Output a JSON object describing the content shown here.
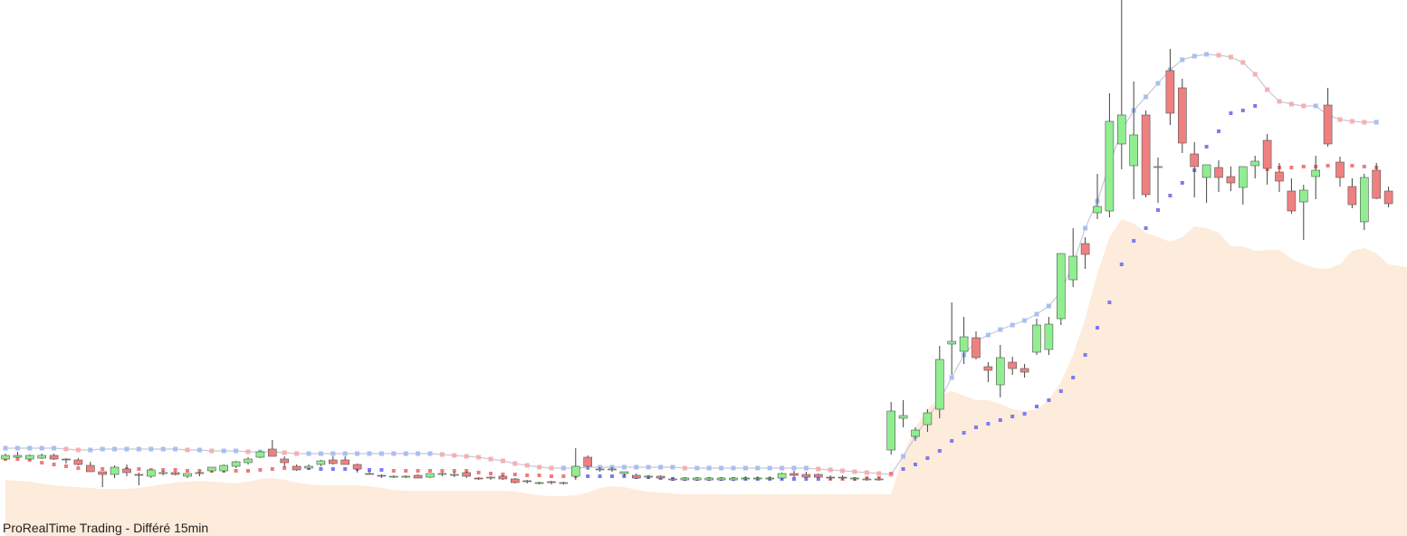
{
  "footer": {
    "text": "ProRealTime Trading - Différé 15min"
  },
  "colors": {
    "up_fill": "#90ee90",
    "down_fill": "#f08080",
    "wick": "#444444",
    "area_fill": "#fdebdc",
    "ma_up": "#a9bff0",
    "ma_down": "#f5b0b0",
    "sar_up": "#7b7bf0",
    "sar_down": "#f07b7b"
  },
  "chart_data": {
    "type": "candlestick",
    "title": "",
    "xlabel": "",
    "ylabel": "",
    "grid": false,
    "legend": "none",
    "ylim": [
      0,
      592
    ],
    "volume_ylim": [
      0,
      592
    ],
    "candles": [
      {
        "o": 85,
        "h": 91,
        "l": 84,
        "c": 89
      },
      {
        "o": 87,
        "h": 93,
        "l": 86,
        "c": 89
      },
      {
        "o": 85,
        "h": 90,
        "l": 84,
        "c": 89
      },
      {
        "o": 86,
        "h": 91,
        "l": 85,
        "c": 89
      },
      {
        "o": 89,
        "h": 91,
        "l": 84,
        "c": 85
      },
      {
        "o": 85,
        "h": 86,
        "l": 80,
        "c": 84
      },
      {
        "o": 84,
        "h": 86,
        "l": 78,
        "c": 79
      },
      {
        "o": 78,
        "h": 82,
        "l": 76,
        "c": 71
      },
      {
        "o": 71,
        "h": 70,
        "l": 54,
        "c": 68
      },
      {
        "o": 68,
        "h": 78,
        "l": 64,
        "c": 76
      },
      {
        "o": 74,
        "h": 79,
        "l": 66,
        "c": 70
      },
      {
        "o": 68,
        "h": 70,
        "l": 56,
        "c": 67
      },
      {
        "o": 66,
        "h": 73,
        "l": 64,
        "c": 73
      },
      {
        "o": 69,
        "h": 72,
        "l": 67,
        "c": 70
      },
      {
        "o": 70,
        "h": 71,
        "l": 67,
        "c": 68
      },
      {
        "o": 66,
        "h": 69,
        "l": 64,
        "c": 69
      },
      {
        "o": 70,
        "h": 71,
        "l": 66,
        "c": 70
      },
      {
        "o": 72,
        "h": 76,
        "l": 70,
        "c": 76
      },
      {
        "o": 72,
        "h": 79,
        "l": 70,
        "c": 78
      },
      {
        "o": 77,
        "h": 83,
        "l": 75,
        "c": 82
      },
      {
        "o": 81,
        "h": 87,
        "l": 79,
        "c": 85
      },
      {
        "o": 87,
        "h": 94,
        "l": 86,
        "c": 93
      },
      {
        "o": 96,
        "h": 106,
        "l": 90,
        "c": 88
      },
      {
        "o": 85,
        "h": 88,
        "l": 76,
        "c": 81
      },
      {
        "o": 77,
        "h": 79,
        "l": 72,
        "c": 73
      },
      {
        "o": 75,
        "h": 79,
        "l": 73,
        "c": 77
      },
      {
        "o": 79,
        "h": 84,
        "l": 77,
        "c": 83
      },
      {
        "o": 84,
        "h": 88,
        "l": 79,
        "c": 80
      },
      {
        "o": 84,
        "h": 88,
        "l": 79,
        "c": 79
      },
      {
        "o": 79,
        "h": 80,
        "l": 70,
        "c": 74
      },
      {
        "o": 69,
        "h": 72,
        "l": 68,
        "c": 68
      },
      {
        "o": 67,
        "h": 68,
        "l": 64,
        "c": 66
      },
      {
        "o": 66,
        "h": 67,
        "l": 64,
        "c": 66
      },
      {
        "o": 66,
        "h": 67,
        "l": 64,
        "c": 66
      },
      {
        "o": 67,
        "h": 68,
        "l": 64,
        "c": 64
      },
      {
        "o": 65,
        "h": 69,
        "l": 64,
        "c": 69
      },
      {
        "o": 68,
        "h": 70,
        "l": 66,
        "c": 69
      },
      {
        "o": 68,
        "h": 71,
        "l": 65,
        "c": 68
      },
      {
        "o": 70,
        "h": 71,
        "l": 64,
        "c": 66
      },
      {
        "o": 64,
        "h": 65,
        "l": 62,
        "c": 63
      },
      {
        "o": 64,
        "h": 66,
        "l": 62,
        "c": 65
      },
      {
        "o": 66,
        "h": 67,
        "l": 62,
        "c": 63
      },
      {
        "o": 63,
        "h": 64,
        "l": 58,
        "c": 59
      },
      {
        "o": 61,
        "h": 62,
        "l": 58,
        "c": 60
      },
      {
        "o": 59,
        "h": 60,
        "l": 57,
        "c": 59
      },
      {
        "o": 60,
        "h": 61,
        "l": 57,
        "c": 59
      },
      {
        "o": 59,
        "h": 60,
        "l": 57,
        "c": 59
      },
      {
        "o": 66,
        "h": 97,
        "l": 62,
        "c": 77
      },
      {
        "o": 87,
        "h": 89,
        "l": 73,
        "c": 77
      },
      {
        "o": 74,
        "h": 76,
        "l": 71,
        "c": 74
      },
      {
        "o": 74,
        "h": 76,
        "l": 71,
        "c": 74
      },
      {
        "o": 69,
        "h": 71,
        "l": 66,
        "c": 71
      },
      {
        "o": 67,
        "h": 69,
        "l": 63,
        "c": 64
      },
      {
        "o": 65,
        "h": 67,
        "l": 63,
        "c": 66
      },
      {
        "o": 66,
        "h": 67,
        "l": 63,
        "c": 64
      },
      {
        "o": 63,
        "h": 65,
        "l": 61,
        "c": 63
      },
      {
        "o": 62,
        "h": 64,
        "l": 61,
        "c": 64
      },
      {
        "o": 62,
        "h": 64,
        "l": 61,
        "c": 64
      },
      {
        "o": 62,
        "h": 65,
        "l": 61,
        "c": 64
      },
      {
        "o": 62,
        "h": 64,
        "l": 61,
        "c": 64
      },
      {
        "o": 62,
        "h": 65,
        "l": 61,
        "c": 64
      },
      {
        "o": 64,
        "h": 66,
        "l": 62,
        "c": 64
      },
      {
        "o": 63,
        "h": 66,
        "l": 62,
        "c": 64
      },
      {
        "o": 64,
        "h": 66,
        "l": 62,
        "c": 64
      },
      {
        "o": 64,
        "h": 70,
        "l": 62,
        "c": 69
      },
      {
        "o": 69,
        "h": 72,
        "l": 65,
        "c": 67
      },
      {
        "o": 68,
        "h": 71,
        "l": 64,
        "c": 65
      },
      {
        "o": 68,
        "h": 69,
        "l": 64,
        "c": 65
      },
      {
        "o": 65,
        "h": 67,
        "l": 62,
        "c": 64
      },
      {
        "o": 65,
        "h": 67,
        "l": 62,
        "c": 64
      },
      {
        "o": 64,
        "h": 65,
        "l": 61,
        "c": 64
      },
      {
        "o": 63,
        "h": 65,
        "l": 61,
        "c": 63
      },
      {
        "o": 63,
        "h": 65,
        "l": 61,
        "c": 63
      },
      {
        "o": 95,
        "h": 148,
        "l": 90,
        "c": 138
      },
      {
        "o": 130,
        "h": 150,
        "l": 120,
        "c": 133
      },
      {
        "o": 110,
        "h": 120,
        "l": 105,
        "c": 117
      },
      {
        "o": 123,
        "h": 140,
        "l": 115,
        "c": 136
      },
      {
        "o": 140,
        "h": 210,
        "l": 130,
        "c": 195
      },
      {
        "o": 212,
        "h": 258,
        "l": 178,
        "c": 215
      },
      {
        "o": 204,
        "h": 242,
        "l": 190,
        "c": 220
      },
      {
        "o": 219,
        "h": 226,
        "l": 195,
        "c": 197
      },
      {
        "o": 187,
        "h": 192,
        "l": 170,
        "c": 183
      },
      {
        "o": 167,
        "h": 211,
        "l": 153,
        "c": 197
      },
      {
        "o": 192,
        "h": 198,
        "l": 178,
        "c": 185
      },
      {
        "o": 185,
        "h": 190,
        "l": 175,
        "c": 181
      },
      {
        "o": 203,
        "h": 240,
        "l": 200,
        "c": 233
      },
      {
        "o": 206,
        "h": 242,
        "l": 200,
        "c": 234
      },
      {
        "o": 240,
        "h": 310,
        "l": 233,
        "c": 312
      },
      {
        "o": 283,
        "h": 340,
        "l": 275,
        "c": 309
      },
      {
        "o": 323,
        "h": 330,
        "l": 295,
        "c": 311
      },
      {
        "o": 357,
        "h": 400,
        "l": 350,
        "c": 364
      },
      {
        "o": 359,
        "h": 489,
        "l": 352,
        "c": 458
      },
      {
        "o": 433,
        "h": 592,
        "l": 405,
        "c": 465
      },
      {
        "o": 409,
        "h": 502,
        "l": 372,
        "c": 443
      },
      {
        "o": 465,
        "h": 470,
        "l": 374,
        "c": 377
      },
      {
        "o": 408,
        "h": 418,
        "l": 368,
        "c": 408
      },
      {
        "o": 514,
        "h": 538,
        "l": 454,
        "c": 467
      },
      {
        "o": 495,
        "h": 505,
        "l": 423,
        "c": 434
      },
      {
        "o": 422,
        "h": 435,
        "l": 374,
        "c": 408
      },
      {
        "o": 396,
        "h": 405,
        "l": 368,
        "c": 410
      },
      {
        "o": 407,
        "h": 415,
        "l": 380,
        "c": 396
      },
      {
        "o": 397,
        "h": 408,
        "l": 381,
        "c": 390
      },
      {
        "o": 385,
        "h": 407,
        "l": 366,
        "c": 408
      },
      {
        "o": 409,
        "h": 420,
        "l": 395,
        "c": 414
      },
      {
        "o": 437,
        "h": 444,
        "l": 388,
        "c": 406
      },
      {
        "o": 402,
        "h": 412,
        "l": 380,
        "c": 392
      },
      {
        "o": 381,
        "h": 395,
        "l": 356,
        "c": 359
      },
      {
        "o": 369,
        "h": 388,
        "l": 327,
        "c": 382
      },
      {
        "o": 397,
        "h": 420,
        "l": 372,
        "c": 404
      },
      {
        "o": 476,
        "h": 495,
        "l": 430,
        "c": 433
      },
      {
        "o": 413,
        "h": 419,
        "l": 386,
        "c": 396
      },
      {
        "o": 386,
        "h": 395,
        "l": 362,
        "c": 366
      },
      {
        "o": 347,
        "h": 400,
        "l": 338,
        "c": 396
      },
      {
        "o": 404,
        "h": 412,
        "l": 372,
        "c": 373
      },
      {
        "o": 381,
        "h": 386,
        "l": 363,
        "c": 367
      }
    ],
    "volume_area": [
      62,
      61,
      60,
      58,
      56,
      55,
      54,
      53,
      52,
      52,
      52,
      53,
      55,
      57,
      59,
      60,
      61,
      60,
      59,
      58,
      60,
      63,
      64,
      62,
      59,
      57,
      56,
      56,
      56,
      56,
      55,
      53,
      51,
      50,
      50,
      50,
      50,
      50,
      50,
      50,
      50,
      50,
      49,
      47,
      45,
      44,
      44,
      45,
      48,
      53,
      55,
      54,
      51,
      49,
      48,
      47,
      46,
      46,
      46,
      46,
      46,
      46,
      46,
      46,
      46,
      46,
      46,
      46,
      46,
      46,
      46,
      46,
      46,
      46,
      90,
      120,
      140,
      155,
      160,
      155,
      150,
      150,
      146,
      140,
      138,
      140,
      150,
      170,
      200,
      240,
      290,
      330,
      350,
      345,
      335,
      330,
      325,
      330,
      342,
      340,
      335,
      320,
      320,
      315,
      316,
      316,
      306,
      300,
      296,
      295,
      300,
      315,
      318,
      312,
      300,
      298,
      296,
      296
    ],
    "ma": [
      97,
      97,
      97,
      97,
      97,
      96,
      95,
      95,
      96,
      96,
      96,
      96,
      96,
      96,
      96,
      95,
      95,
      94,
      94,
      94,
      93,
      93,
      93,
      92,
      91,
      91,
      91,
      91,
      91,
      91,
      91,
      91,
      91,
      91,
      91,
      91,
      90,
      89,
      88,
      87,
      85,
      83,
      80,
      78,
      76,
      75,
      75,
      75,
      76,
      76,
      76,
      76,
      76,
      76,
      76,
      76,
      75,
      75,
      75,
      75,
      75,
      75,
      75,
      75,
      75,
      75,
      75,
      74,
      73,
      72,
      71,
      70,
      69,
      68,
      88,
      110,
      130,
      150,
      175,
      200,
      215,
      222,
      228,
      233,
      238,
      245,
      254,
      270,
      300,
      340,
      370,
      410,
      448,
      470,
      485,
      500,
      515,
      526,
      530,
      532,
      531,
      529,
      523,
      510,
      493,
      480,
      477,
      475,
      475,
      465,
      460,
      458,
      457,
      457
    ],
    "sar": [
      85,
      85,
      84,
      81,
      79,
      77,
      75,
      75,
      74,
      74,
      74,
      74,
      73,
      73,
      73,
      72,
      72,
      72,
      72,
      72,
      72,
      73,
      74,
      75,
      75,
      75,
      74,
      74,
      74,
      74,
      73,
      73,
      72,
      72,
      72,
      72,
      72,
      72,
      72,
      70,
      69,
      68,
      68,
      67,
      67,
      66,
      66,
      66,
      66,
      66,
      66,
      66,
      65,
      65,
      64,
      63,
      63,
      63,
      63,
      63,
      63,
      63,
      63,
      63,
      63,
      63,
      63,
      63,
      63,
      63,
      63,
      64,
      64,
      69,
      74,
      79,
      86,
      94,
      105,
      114,
      120,
      124,
      128,
      132,
      135,
      143,
      150,
      160,
      175,
      200,
      230,
      258,
      300,
      326,
      340,
      360,
      376,
      390,
      404,
      430,
      447,
      467,
      470,
      475,
      405,
      407,
      407,
      408,
      408,
      409,
      409,
      409,
      408,
      407
    ],
    "sar_side": [
      "d",
      "d",
      "d",
      "d",
      "d",
      "d",
      "d",
      "d",
      "d",
      "d",
      "d",
      "d",
      "d",
      "d",
      "d",
      "d",
      "d",
      "d",
      "d",
      "d",
      "d",
      "d",
      "d",
      "d",
      "u",
      "u",
      "u",
      "u",
      "u",
      "u",
      "u",
      "u",
      "d",
      "d",
      "d",
      "d",
      "d",
      "d",
      "d",
      "d",
      "d",
      "d",
      "d",
      "d",
      "d",
      "d",
      "d",
      "d",
      "u",
      "u",
      "u",
      "u",
      "u",
      "u",
      "u",
      "u",
      "u",
      "u",
      "u",
      "u",
      "u",
      "u",
      "u",
      "u",
      "u",
      "u",
      "u",
      "u",
      "d",
      "d",
      "d",
      "d",
      "d",
      "d",
      "u",
      "u",
      "u",
      "u",
      "u",
      "u",
      "u",
      "u",
      "u",
      "u",
      "u",
      "u",
      "u",
      "u",
      "u",
      "u",
      "u",
      "u",
      "u",
      "u",
      "u",
      "u",
      "u",
      "u",
      "u",
      "u",
      "u",
      "u",
      "u",
      "u",
      "d",
      "d",
      "d",
      "d",
      "d",
      "d",
      "d",
      "d",
      "d",
      "d"
    ]
  }
}
